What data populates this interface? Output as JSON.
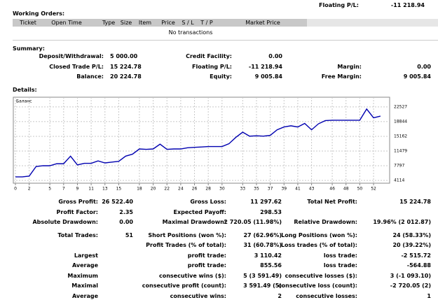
{
  "header": {
    "label": "Floating P/L:",
    "value": "-11 218.94"
  },
  "working_orders": {
    "title": "Working Orders:",
    "columns": [
      "Ticket",
      "Open Time",
      "Type",
      "Size",
      "Item",
      "Price",
      "S / L",
      "T / P",
      "Market Price"
    ],
    "empty_text": "No transactions"
  },
  "summary": {
    "title": "Summary:",
    "rows": [
      {
        "left": {
          "label": "Deposit/Withdrawal:",
          "value": "5 000.00"
        },
        "middle": {
          "label": "Credit Facility:",
          "value": "0.00"
        }
      },
      {
        "left": {
          "label": "Closed Trade P/L:",
          "value": "15 224.78"
        },
        "middle": {
          "label": "Floating P/L:",
          "value": "-11 218.94"
        },
        "right": {
          "label": "Margin:",
          "value": "0.00"
        }
      },
      {
        "left": {
          "label": "Balance:",
          "value": "20 224.78"
        },
        "middle": {
          "label": "Equity:",
          "value": "9 005.84"
        },
        "right": {
          "label": "Free Margin:",
          "value": "9 005.84"
        }
      }
    ]
  },
  "details": {
    "title": "Details:"
  },
  "chart_data": {
    "type": "line",
    "x": [
      0,
      1,
      2,
      3,
      4,
      5,
      6,
      7,
      8,
      9,
      10,
      11,
      12,
      13,
      14,
      15,
      16,
      17,
      18,
      19,
      20,
      21,
      22,
      23,
      24,
      25,
      26,
      27,
      28,
      29,
      30,
      31,
      32,
      33,
      34,
      35,
      36,
      37,
      38,
      39,
      40,
      41,
      42,
      43,
      44,
      45,
      46,
      47,
      48,
      49,
      50,
      51,
      52,
      53
    ],
    "series": [
      {
        "name": "Баланс",
        "color": "#0000b0",
        "values": [
          5000,
          5000,
          5200,
          7600,
          7800,
          7800,
          8300,
          8300,
          10200,
          8000,
          8400,
          8400,
          9000,
          8500,
          8700,
          8900,
          10200,
          10700,
          12000,
          11900,
          12000,
          13200,
          11900,
          12000,
          12000,
          12300,
          12400,
          12500,
          12600,
          12600,
          12600,
          13300,
          14900,
          16200,
          15200,
          15300,
          15200,
          15400,
          16800,
          17500,
          17800,
          17500,
          18400,
          16800,
          18300,
          19100,
          19200,
          19200,
          19200,
          19200,
          19200,
          22000,
          19800,
          20225
        ]
      }
    ],
    "xlim": [
      0,
      54
    ],
    "xticks": [
      0,
      2,
      5,
      7,
      9,
      11,
      13,
      15,
      18,
      20,
      22,
      24,
      26,
      28,
      30,
      33,
      35,
      37,
      39,
      41,
      43,
      46,
      48,
      50,
      52
    ],
    "ylim": [
      3420,
      24960
    ],
    "yticks": [
      4114,
      7797,
      11479,
      15162,
      18844,
      22527
    ],
    "grid": true
  },
  "stats": {
    "rows": [
      {
        "left": {
          "label": "Gross Profit:",
          "value": "26 522.40"
        },
        "middle": {
          "label": "Gross Loss:",
          "value": "11 297.62"
        },
        "right": {
          "label": "Total Net Profit:",
          "value": "15 224.78"
        }
      },
      {
        "left": {
          "label": "Profit Factor:",
          "value": "2.35"
        },
        "middle": {
          "label": "Expected Payoff:",
          "value": "298.53"
        }
      },
      {
        "left": {
          "label": "Absolute Drawdown:",
          "value": "0.00"
        },
        "middle": {
          "label": "Maximal Drawdown:",
          "value": "2 720.05 (11.98%)"
        },
        "right": {
          "label": "Relative Drawdown:",
          "value": "19.96% (2 012.87)"
        }
      },
      {
        "left": {
          "label": "Total Trades:",
          "value": "51"
        },
        "middle": {
          "label": "Short Positions (won %):",
          "value": "27 (62.96%)"
        },
        "right": {
          "label": "Long Positions (won %):",
          "value": "24 (58.33%)"
        }
      },
      {
        "middle": {
          "label": "Profit Trades (% of total):",
          "value": "31 (60.78%)"
        },
        "right": {
          "label": "Loss trades (% of total):",
          "value": "20 (39.22%)"
        }
      },
      {
        "left": {
          "label": "Largest"
        },
        "middle": {
          "label": "profit trade:",
          "value": "3 110.42"
        },
        "right": {
          "label": "loss trade:",
          "value": "-2 515.72"
        }
      },
      {
        "left": {
          "label": "Average"
        },
        "middle": {
          "label": "profit trade:",
          "value": "855.56"
        },
        "right": {
          "label": "loss trade:",
          "value": "-564.88"
        }
      },
      {
        "left": {
          "label": "Maximum"
        },
        "middle": {
          "label": "consecutive wins ($):",
          "value": "5 (3 591.49)"
        },
        "right": {
          "label": "consecutive losses ($):",
          "value": "3 (-1 093.10)"
        }
      },
      {
        "left": {
          "label": "Maximal"
        },
        "middle": {
          "label": "consecutive profit (count):",
          "value": "3 591.49 (5)"
        },
        "right": {
          "label": "consecutive loss (count):",
          "value": "-2 720.05 (2)"
        }
      },
      {
        "left": {
          "label": "Average"
        },
        "middle": {
          "label": "consecutive wins:",
          "value": "2"
        },
        "right": {
          "label": "consecutive losses:",
          "value": "1"
        }
      }
    ]
  }
}
